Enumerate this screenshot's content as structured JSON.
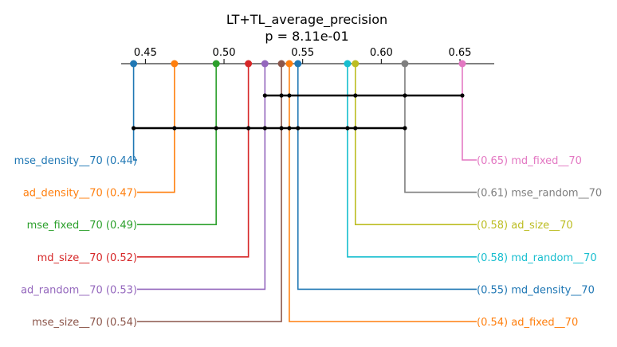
{
  "chart_data": {
    "type": "critical-difference",
    "title": "LT+TL_average_precision",
    "subtitle": "p = 8.11e-01",
    "axis_ticks": [
      0.45,
      0.5,
      0.55,
      0.6,
      0.65
    ],
    "axis_tick_labels": [
      "0.45",
      "0.50",
      "0.55",
      "0.60",
      "0.65"
    ],
    "xlim": [
      0.4346,
      0.6718
    ],
    "methods": [
      {
        "name": "mse_density__70",
        "value": 0.4425,
        "label": "mse_density__70 (0.44)",
        "side": "left",
        "color": "#1f77b4"
      },
      {
        "name": "ad_density__70",
        "value": 0.4685,
        "label": "ad_density__70 (0.47)",
        "side": "left",
        "color": "#ff7f0e"
      },
      {
        "name": "mse_fixed__70",
        "value": 0.495,
        "label": "mse_fixed__70 (0.49)",
        "side": "left",
        "color": "#2ca02c"
      },
      {
        "name": "md_size__70",
        "value": 0.5155,
        "label": "md_size__70 (0.52)",
        "side": "left",
        "color": "#d62728"
      },
      {
        "name": "ad_random__70",
        "value": 0.526,
        "label": "ad_random__70 (0.53)",
        "side": "left",
        "color": "#9467bd"
      },
      {
        "name": "mse_size__70",
        "value": 0.5365,
        "label": "mse_size__70 (0.54)",
        "side": "left",
        "color": "#8c564b"
      },
      {
        "name": "ad_fixed__70",
        "value": 0.5415,
        "label": "(0.54) ad_fixed__70",
        "side": "right",
        "color": "#ff7f0e"
      },
      {
        "name": "md_density__70",
        "value": 0.547,
        "label": "(0.55) md_density__70",
        "side": "right",
        "color": "#1f77b4"
      },
      {
        "name": "md_random__70",
        "value": 0.5785,
        "label": "(0.58) md_random__70",
        "side": "right",
        "color": "#17becf"
      },
      {
        "name": "ad_size__70",
        "value": 0.5835,
        "label": "(0.58) ad_size__70",
        "side": "right",
        "color": "#bcbd22"
      },
      {
        "name": "mse_random__70",
        "value": 0.615,
        "label": "(0.61) mse_random__70",
        "side": "right",
        "color": "#7f7f7f"
      },
      {
        "name": "md_fixed__70",
        "value": 0.6515,
        "label": "(0.65) md_fixed__70",
        "side": "right",
        "color": "#e377c2"
      }
    ],
    "cliques": [
      [
        "ad_random__70",
        "mse_size__70",
        "ad_fixed__70",
        "ad_size__70",
        "mse_random__70",
        "md_fixed__70"
      ],
      [
        "mse_density__70",
        "ad_density__70",
        "mse_fixed__70",
        "md_size__70",
        "ad_random__70",
        "mse_size__70",
        "ad_fixed__70",
        "md_density__70",
        "md_random__70",
        "ad_size__70",
        "mse_random__70"
      ]
    ]
  }
}
